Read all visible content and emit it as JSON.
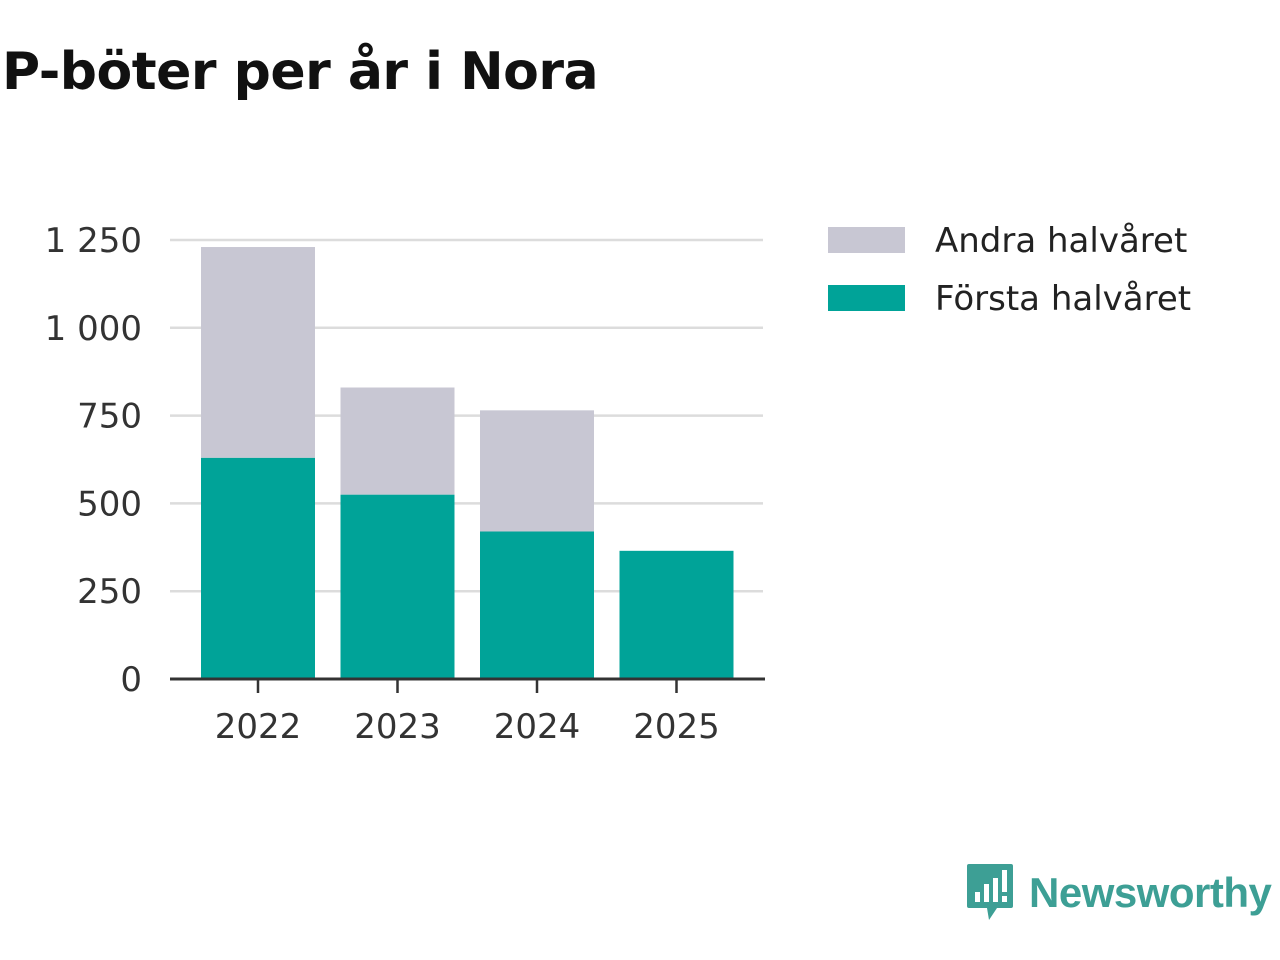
{
  "chart_data": {
    "type": "bar",
    "stacked": true,
    "title": "P-böter per år i Nora",
    "categories": [
      "2022",
      "2023",
      "2024",
      "2025"
    ],
    "series": [
      {
        "name": "Första halvåret",
        "values": [
          630,
          525,
          420,
          365
        ],
        "color": "#00a398"
      },
      {
        "name": "Andra halvåret",
        "values": [
          600,
          305,
          345,
          0
        ],
        "color": "#c8c7d3"
      }
    ],
    "legend_order": [
      "Andra halvåret",
      "Första halvåret"
    ],
    "y_ticks": [
      {
        "value": 0,
        "label": "0"
      },
      {
        "value": 250,
        "label": "250"
      },
      {
        "value": 500,
        "label": "500"
      },
      {
        "value": 750,
        "label": "750"
      },
      {
        "value": 1000,
        "label": "1 000"
      },
      {
        "value": 1250,
        "label": "1 250"
      }
    ],
    "ylim": [
      0,
      1250
    ],
    "xlabel": "",
    "ylabel": "",
    "grid": true,
    "legend_position": "top-right"
  },
  "brand": {
    "name": "Newsworthy",
    "color": "#3d9f95"
  }
}
